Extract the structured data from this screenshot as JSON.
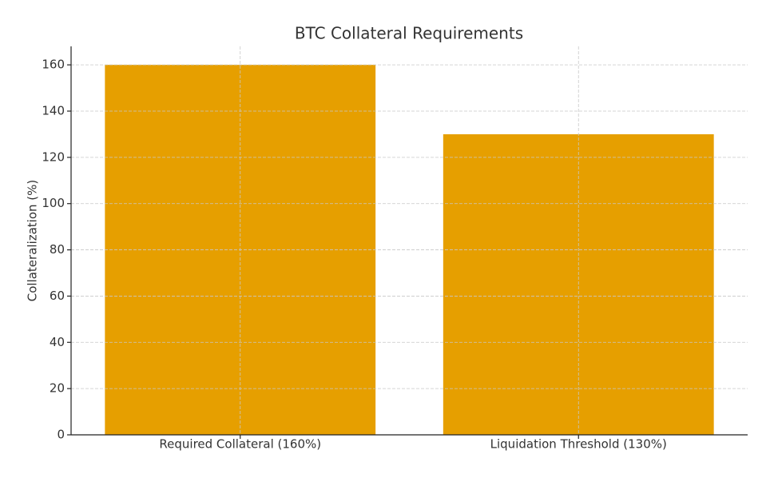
{
  "chart_data": {
    "type": "bar",
    "title": "BTC Collateral Requirements",
    "y_label": "Collateralization (%)",
    "categories": [
      "Required Collateral (160%)",
      "Liquidation Threshold (130%)"
    ],
    "values": [
      160,
      130
    ],
    "color": "#e69f00",
    "ylim": [
      0,
      168
    ],
    "yticks": [
      0,
      20,
      40,
      60,
      80,
      100,
      120,
      140,
      160
    ],
    "grid": true
  }
}
